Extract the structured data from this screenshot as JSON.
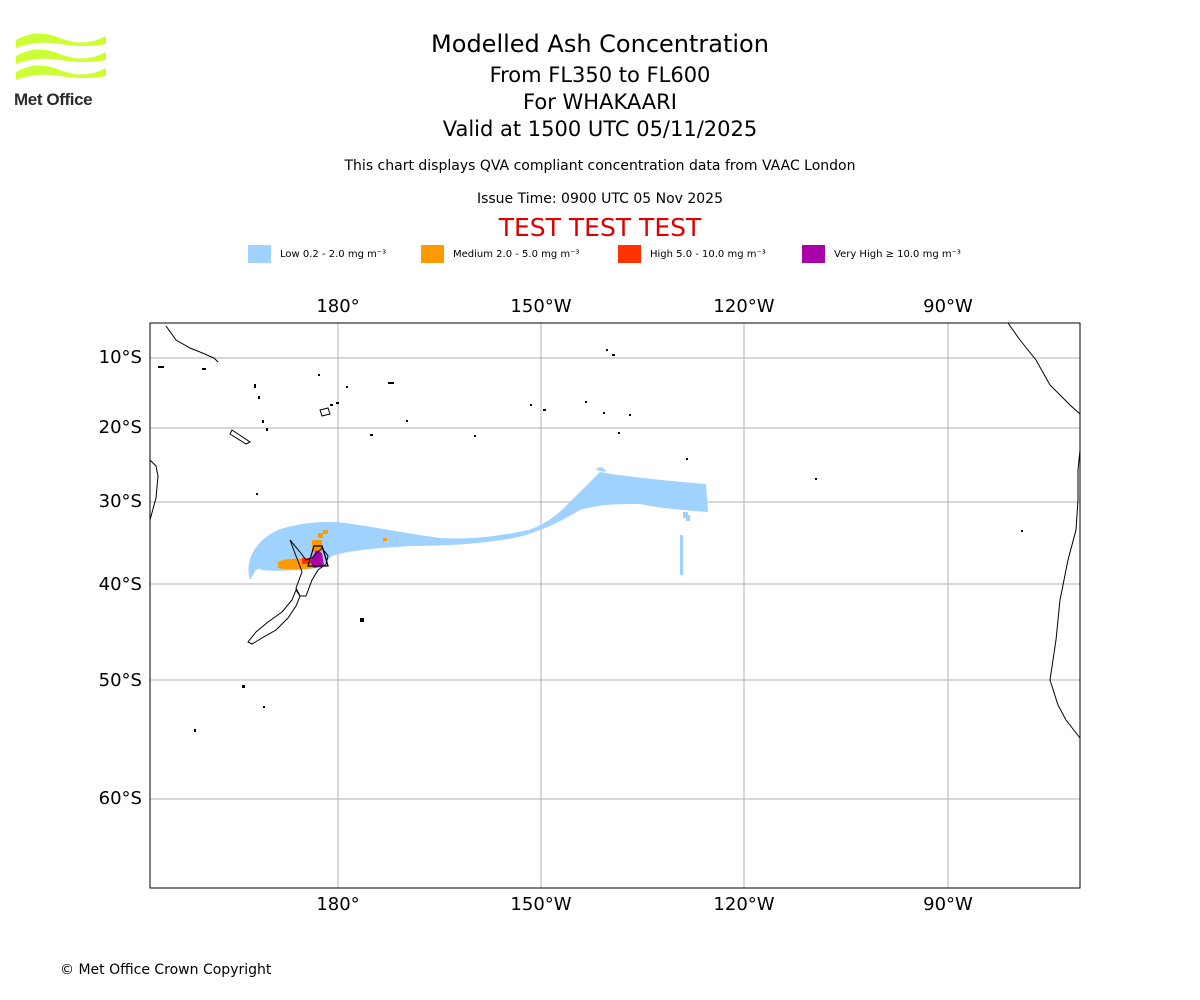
{
  "logo": {
    "text": "Met Office",
    "color": "#ccff33"
  },
  "header": {
    "title": "Modelled Ash Concentration",
    "levels": "From FL350 to FL600",
    "volcano": "For WHAKAARI",
    "valid": "Valid at 1500 UTC 05/11/2025",
    "compliance": "This chart displays QVA compliant concentration data from VAAC London",
    "issue_time": "Issue Time: 0900 UTC 05 Nov 2025",
    "test_banner": "TEST TEST TEST",
    "test_color": "#dd0000"
  },
  "legend": [
    {
      "label": "Low 0.2 - 2.0 mg m⁻³",
      "color": "#a0d2ff"
    },
    {
      "label": "Medium 2.0 - 5.0 mg m⁻³",
      "color": "#ff9900"
    },
    {
      "label": "High 5.0 - 10.0 mg m⁻³",
      "color": "#ff3300"
    },
    {
      "label": "Very High  ≥  10.0 mg m⁻³",
      "color": "#aa00aa"
    }
  ],
  "map": {
    "lon_labels": [
      "180°",
      "150°W",
      "120°W",
      "90°W"
    ],
    "lat_labels": [
      "10°S",
      "20°S",
      "30°S",
      "40°S",
      "50°S",
      "60°S"
    ],
    "grid_color": "#b0b0b0"
  },
  "footer": {
    "copyright": "© Met Office Crown Copyright"
  }
}
